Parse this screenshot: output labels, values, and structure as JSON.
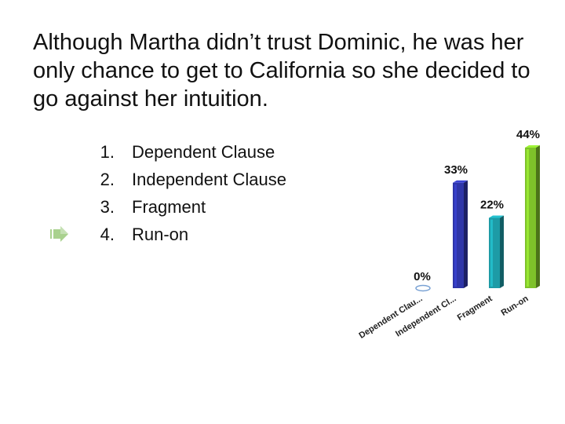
{
  "question": "Although Martha didn’t trust Dominic, he was her only chance to get to California so she decided to go against her intuition.",
  "options": [
    {
      "num": "1.",
      "label": "Dependent Clause"
    },
    {
      "num": "2.",
      "label": "Independent Clause"
    },
    {
      "num": "3.",
      "label": "Fragment"
    },
    {
      "num": "4.",
      "label": "Run-on"
    }
  ],
  "correct_marker_option": 4,
  "chart_data": {
    "type": "bar",
    "categories": [
      "Dependent Clau...",
      "Independent Cl...",
      "Fragment",
      "Run-on"
    ],
    "values": [
      0,
      33,
      22,
      44
    ],
    "value_labels": [
      "0%",
      "33%",
      "22%",
      "44%"
    ],
    "ylim": [
      0,
      44
    ],
    "colors": [
      "#7aa2d4",
      "#2e35a8",
      "#1d9ba6",
      "#7ec22a"
    ],
    "grid": false,
    "legend": "none"
  }
}
